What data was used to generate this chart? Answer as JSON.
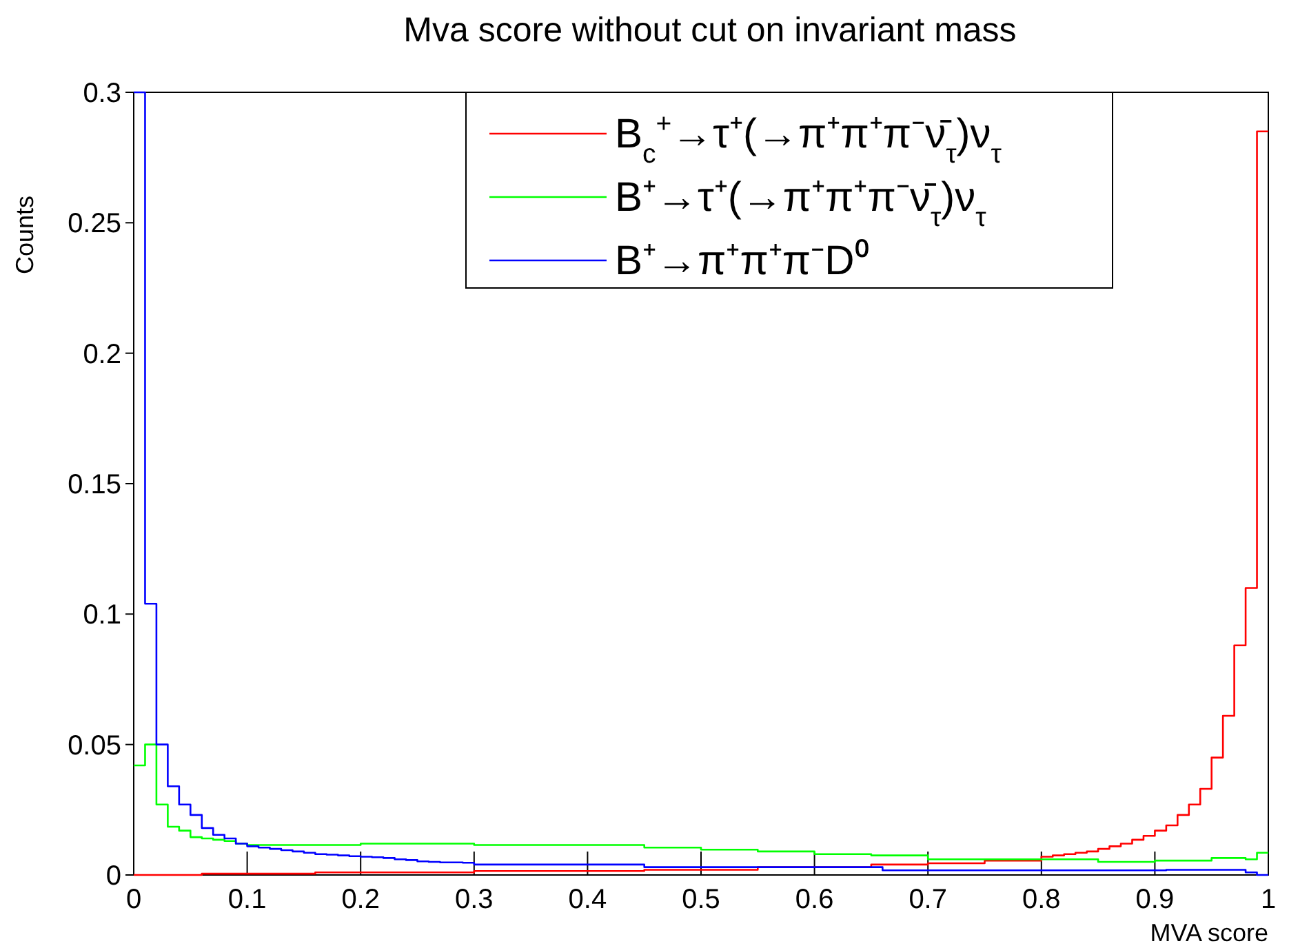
{
  "chart_data": {
    "type": "histogram",
    "title": "Mva score without cut on invariant mass",
    "xlabel": "MVA score",
    "ylabel": "Counts",
    "bins": [
      0,
      0.01,
      0.02,
      0.03,
      0.04,
      0.05,
      0.06,
      0.07,
      0.08,
      0.09,
      0.1,
      0.11,
      0.12,
      0.13,
      0.14,
      0.15,
      0.16,
      0.17,
      0.18,
      0.19,
      0.2,
      0.21,
      0.22,
      0.23,
      0.24,
      0.25,
      0.26,
      0.27,
      0.28,
      0.29,
      0.3,
      0.31,
      0.32,
      0.33,
      0.34,
      0.35,
      0.36,
      0.37,
      0.38,
      0.39,
      0.4,
      0.41,
      0.42,
      0.43,
      0.44,
      0.45,
      0.46,
      0.47,
      0.48,
      0.49,
      0.5,
      0.51,
      0.52,
      0.53,
      0.54,
      0.55,
      0.56,
      0.57,
      0.58,
      0.59,
      0.6,
      0.61,
      0.62,
      0.63,
      0.64,
      0.65,
      0.66,
      0.67,
      0.68,
      0.69,
      0.7,
      0.71,
      0.72,
      0.73,
      0.74,
      0.75,
      0.76,
      0.77,
      0.78,
      0.79,
      0.8,
      0.81,
      0.82,
      0.83,
      0.84,
      0.85,
      0.86,
      0.87,
      0.88,
      0.89,
      0.9,
      0.91,
      0.92,
      0.93,
      0.94,
      0.95,
      0.96,
      0.97,
      0.98,
      0.99,
      1
    ],
    "series": [
      {
        "name": "B$_{c}$$^{+}$→τ⁺(→π⁺π⁺π⁻ν̄$_{τ}$)ν$_{τ}$",
        "color": "#ff0000",
        "values": [
          0,
          0,
          0,
          0,
          0,
          0,
          0.0005,
          0.0005,
          0.0005,
          0.0005,
          0.0005,
          0.0005,
          0.0005,
          0.0005,
          0.0005,
          0.0005,
          0.001,
          0.001,
          0.001,
          0.001,
          0.001,
          0.001,
          0.001,
          0.001,
          0.001,
          0.001,
          0.001,
          0.001,
          0.001,
          0.001,
          0.0015,
          0.0015,
          0.0015,
          0.0015,
          0.0015,
          0.0015,
          0.0015,
          0.0015,
          0.0015,
          0.0015,
          0.0015,
          0.0015,
          0.0015,
          0.0015,
          0.0015,
          0.002,
          0.002,
          0.002,
          0.002,
          0.002,
          0.002,
          0.002,
          0.002,
          0.002,
          0.002,
          0.003,
          0.003,
          0.003,
          0.003,
          0.003,
          0.003,
          0.003,
          0.003,
          0.003,
          0.003,
          0.004,
          0.004,
          0.004,
          0.004,
          0.004,
          0.0045,
          0.0045,
          0.0045,
          0.0045,
          0.0045,
          0.0055,
          0.0055,
          0.0055,
          0.0055,
          0.0055,
          0.007,
          0.0075,
          0.008,
          0.0085,
          0.009,
          0.01,
          0.011,
          0.012,
          0.0135,
          0.015,
          0.017,
          0.019,
          0.023,
          0.027,
          0.033,
          0.045,
          0.061,
          0.088,
          0.11,
          0.285
        ]
      },
      {
        "name": "B⁺→τ⁺(→π⁺π⁺π⁻ν̄$_{τ}$)ν$_{τ}$",
        "color": "#00ff00",
        "values": [
          0.042,
          0.05,
          0.027,
          0.0185,
          0.017,
          0.0145,
          0.014,
          0.0135,
          0.013,
          0.012,
          0.0115,
          0.0115,
          0.0115,
          0.0115,
          0.0115,
          0.0115,
          0.0115,
          0.0115,
          0.0115,
          0.0115,
          0.012,
          0.012,
          0.012,
          0.012,
          0.012,
          0.012,
          0.012,
          0.012,
          0.012,
          0.012,
          0.0115,
          0.0115,
          0.0115,
          0.0115,
          0.0115,
          0.0115,
          0.0115,
          0.0115,
          0.0115,
          0.0115,
          0.0115,
          0.0115,
          0.0115,
          0.0115,
          0.0115,
          0.0105,
          0.0105,
          0.0105,
          0.0105,
          0.0105,
          0.0097,
          0.0097,
          0.0097,
          0.0097,
          0.0097,
          0.009,
          0.009,
          0.009,
          0.009,
          0.009,
          0.008,
          0.008,
          0.008,
          0.008,
          0.008,
          0.0075,
          0.0075,
          0.0075,
          0.0075,
          0.0075,
          0.006,
          0.006,
          0.006,
          0.006,
          0.006,
          0.006,
          0.006,
          0.006,
          0.006,
          0.006,
          0.006,
          0.006,
          0.006,
          0.006,
          0.006,
          0.005,
          0.005,
          0.005,
          0.005,
          0.005,
          0.0055,
          0.0055,
          0.0055,
          0.0055,
          0.0055,
          0.0065,
          0.0065,
          0.0065,
          0.006,
          0.0085
        ]
      },
      {
        "name": "B⁺→π⁺π⁺π⁻D⁰",
        "color": "#0000ff",
        "values": [
          0.3,
          0.104,
          0.05,
          0.034,
          0.027,
          0.023,
          0.018,
          0.0154,
          0.014,
          0.012,
          0.011,
          0.0105,
          0.01,
          0.0095,
          0.009,
          0.0085,
          0.008,
          0.0078,
          0.0075,
          0.0072,
          0.007,
          0.0068,
          0.0065,
          0.006,
          0.0057,
          0.0052,
          0.005,
          0.0048,
          0.0048,
          0.0047,
          0.004,
          0.004,
          0.004,
          0.004,
          0.004,
          0.004,
          0.004,
          0.004,
          0.004,
          0.004,
          0.004,
          0.004,
          0.004,
          0.004,
          0.004,
          0.003,
          0.003,
          0.003,
          0.003,
          0.003,
          0.003,
          0.003,
          0.003,
          0.003,
          0.003,
          0.003,
          0.003,
          0.003,
          0.003,
          0.003,
          0.003,
          0.003,
          0.003,
          0.003,
          0.003,
          0.003,
          0.0018,
          0.0018,
          0.0018,
          0.0018,
          0.0018,
          0.0018,
          0.0018,
          0.0018,
          0.0018,
          0.0018,
          0.0018,
          0.0018,
          0.0018,
          0.0018,
          0.0018,
          0.0018,
          0.0018,
          0.0018,
          0.0018,
          0.0018,
          0.0018,
          0.0018,
          0.0018,
          0.0018,
          0.0018,
          0.002,
          0.002,
          0.002,
          0.002,
          0.002,
          0.002,
          0.002,
          0.001,
          0
        ]
      }
    ],
    "xlim": [
      0,
      1
    ],
    "xticks": [
      0,
      0.1,
      0.2,
      0.3,
      0.4,
      0.5,
      0.6,
      0.7,
      0.8,
      0.9,
      1
    ],
    "ylim": [
      0,
      0.3
    ],
    "yticks": [
      0,
      0.05,
      0.1,
      0.15,
      0.2,
      0.25,
      0.3
    ],
    "legend": "top right"
  }
}
